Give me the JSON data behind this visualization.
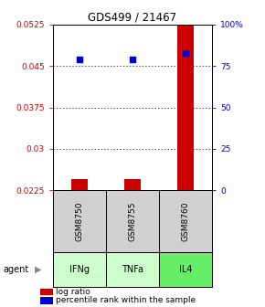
{
  "title": "GDS499 / 21467",
  "samples": [
    "GSM8750",
    "GSM8755",
    "GSM8760"
  ],
  "agents": [
    "IFNg",
    "TNFa",
    "IL4"
  ],
  "agent_colors": [
    "#ccffcc",
    "#ccffcc",
    "#66ee66"
  ],
  "log_ratios": [
    0.0245,
    0.0246,
    0.0525
  ],
  "percentile_ranks_pct": [
    79,
    79,
    83
  ],
  "ylim_left": [
    0.0225,
    0.0525
  ],
  "ylim_right": [
    0,
    100
  ],
  "yticks_left": [
    0.0225,
    0.03,
    0.0375,
    0.045,
    0.0525
  ],
  "yticks_left_labels": [
    "0.0225",
    "0.03",
    "0.0375",
    "0.045",
    "0.0525"
  ],
  "yticks_right": [
    0,
    25,
    50,
    75,
    100
  ],
  "yticks_right_labels": [
    "0",
    "25",
    "50",
    "75",
    "100%"
  ],
  "bar_color": "#cc0000",
  "dot_color": "#0000cc",
  "left_tick_color": "#cc0000",
  "right_tick_color": "#0000cc",
  "bar_width": 0.3
}
